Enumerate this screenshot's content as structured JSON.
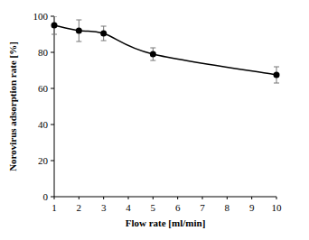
{
  "chart_data": {
    "type": "line",
    "x_label": "Flow rate [ml/min]",
    "y_label": "Norovirus adsorption rate [%]",
    "x": [
      1,
      2,
      3,
      5,
      10
    ],
    "series": [
      {
        "name": "Norovirus adsorption rate",
        "color": "#000000",
        "marker": "circle",
        "line_style": "smooth",
        "values": [
          95,
          92,
          90.5,
          79,
          67.5
        ],
        "errors": [
          5,
          6,
          4,
          3.5,
          4.5
        ]
      }
    ],
    "xlim": [
      1,
      10
    ],
    "xticks": [
      1,
      2,
      3,
      4,
      5,
      6,
      7,
      8,
      9,
      10
    ],
    "ylim": [
      0,
      100
    ],
    "yticks": [
      0,
      20,
      40,
      60,
      80,
      100
    ],
    "grid": false
  }
}
